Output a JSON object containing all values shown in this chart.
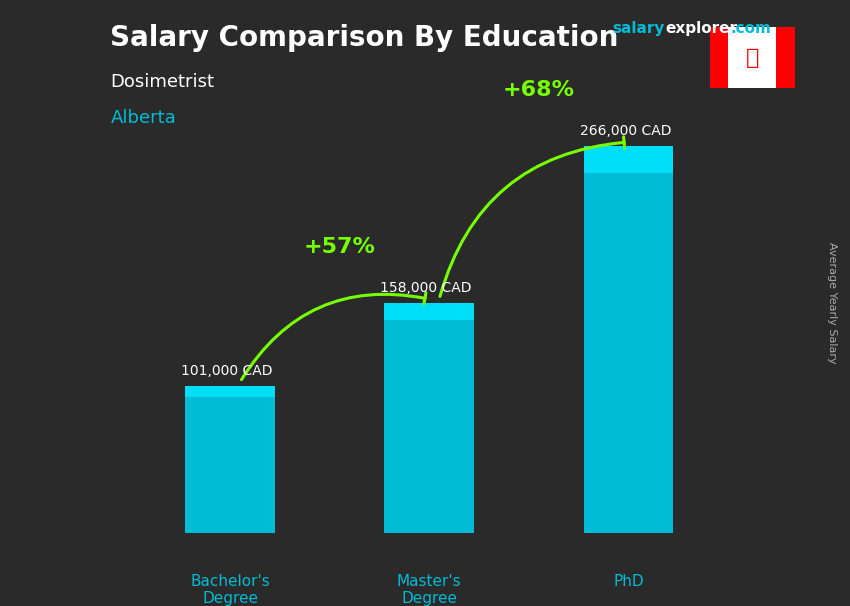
{
  "title_salary": "Salary Comparison By Education",
  "subtitle_job": "Dosimetrist",
  "subtitle_location": "Alberta",
  "watermark": "salaryexplorer.com",
  "side_label": "Average Yearly Salary",
  "categories": [
    "Bachelor's\nDegree",
    "Master's\nDegree",
    "PhD"
  ],
  "values": [
    101000,
    158000,
    266000
  ],
  "value_labels": [
    "101,000 CAD",
    "158,000 CAD",
    "266,000 CAD"
  ],
  "bar_color": "#00bcd4",
  "bar_color_top": "#00e5ff",
  "pct_labels": [
    "+57%",
    "+68%"
  ],
  "arrow_color": "#76ff03",
  "background_color": "#2a2a2a",
  "title_color": "#ffffff",
  "subtitle_job_color": "#ffffff",
  "subtitle_location_color": "#00bcd4",
  "value_label_color": "#ffffff",
  "pct_color": "#76ff03",
  "category_color": "#00bcd4",
  "watermark_salary_color": "#00bcd4",
  "watermark_explorer_color": "#ffffff",
  "side_label_color": "#aaaaaa",
  "ylim_max": 300000,
  "fig_width": 8.5,
  "fig_height": 6.06
}
